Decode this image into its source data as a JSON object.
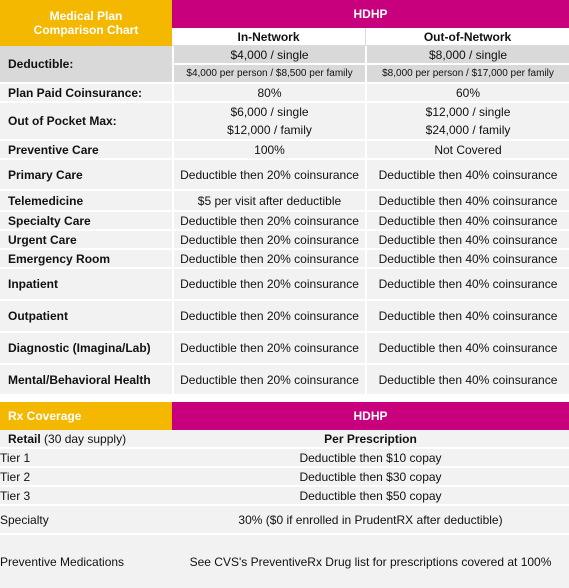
{
  "medical": {
    "title": "Medical Plan Comparison Chart",
    "plan": "HDHP",
    "col_in": "In-Network",
    "col_out": "Out-of-Network",
    "deductible": {
      "label": "Deductible:",
      "in_single": "$4,000 / single",
      "out_single": "$8,000 / single",
      "in_family": "$4,000 per person / $8,500 per family",
      "out_family": "$8,000 per person / $17,000 per family"
    },
    "coinsurance": {
      "label": "Plan Paid Coinsurance:",
      "in": "80%",
      "out": "60%"
    },
    "oop": {
      "label": "Out of Pocket Max:",
      "in_single": "$6,000 / single",
      "in_family": "$12,000 / family",
      "out_single": "$12,000 / single",
      "out_family": "$24,000 / family"
    },
    "rows": [
      {
        "label": "Preventive Care",
        "in": "100%",
        "out": "Not Covered"
      },
      {
        "label": "Primary Care",
        "in": "Deductible then 20% coinsurance",
        "out": "Deductible then 40% coinsurance"
      },
      {
        "label": "Telemedicine",
        "in": "$5 per visit after deductible",
        "out": "Deductible then 40% coinsurance"
      },
      {
        "label": "Specialty Care",
        "in": "Deductible then 20% coinsurance",
        "out": "Deductible then 40% coinsurance"
      },
      {
        "label": "Urgent Care",
        "in": "Deductible then 20% coinsurance",
        "out": "Deductible then 40% coinsurance"
      },
      {
        "label": "Emergency Room",
        "in": "Deductible then 20% coinsurance",
        "out": "Deductible then 40% coinsurance"
      },
      {
        "label": "Inpatient",
        "in": "Deductible then 20% coinsurance",
        "out": "Deductible then 40% coinsurance"
      },
      {
        "label": "Outpatient",
        "in": "Deductible then 20% coinsurance",
        "out": "Deductible then 40% coinsurance"
      },
      {
        "label": "Diagnostic (Imagina/Lab)",
        "in": "Deductible then 20% coinsurance",
        "out": "Deductible then 40% coinsurance"
      },
      {
        "label": "Mental/Behavioral Health",
        "in": "Deductible then 20% coinsurance",
        "out": "Deductible then 40% coinsurance"
      }
    ]
  },
  "rx": {
    "title": "Rx Coverage",
    "plan": "HDHP",
    "retail_bold": "Retail",
    "retail_rest": " (30 day supply)",
    "per_prescription": "Per Prescription",
    "rows": [
      {
        "label": "Tier 1",
        "value": "Deductible then $10 copay"
      },
      {
        "label": "Tier 2",
        "value": "Deductible then $30 copay"
      },
      {
        "label": "Tier 3",
        "value": "Deductible then $50 copay"
      },
      {
        "label": "Specialty",
        "value": "30% ($0 if enrolled in PrudentRX after deductible)"
      },
      {
        "label": "Preventive Medications",
        "value": "See CVS's PreventiveRx Drug list for prescriptions covered at 100%"
      }
    ]
  },
  "colors": {
    "yellow": "#f4b800",
    "magenta": "#c8007e",
    "light": "#f2f2f2",
    "gray": "#d9d9d9"
  }
}
